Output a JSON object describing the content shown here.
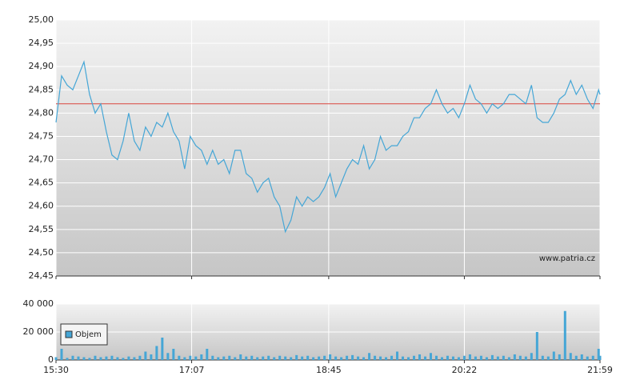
{
  "chart_data": [
    {
      "type": "line",
      "annotation": "www.patria.cz",
      "reference_line": {
        "value": 24.82,
        "color": "#d9463e"
      },
      "x": [
        "15:30",
        "15:34",
        "15:38",
        "15:42",
        "15:46",
        "15:50",
        "15:54",
        "15:58",
        "16:02",
        "16:06",
        "16:10",
        "16:14",
        "16:18",
        "16:22",
        "16:26",
        "16:30",
        "16:34",
        "16:38",
        "16:42",
        "16:46",
        "16:50",
        "16:54",
        "16:58",
        "17:02",
        "17:06",
        "17:10",
        "17:14",
        "17:18",
        "17:22",
        "17:26",
        "17:30",
        "17:34",
        "17:38",
        "17:42",
        "17:46",
        "17:50",
        "17:54",
        "17:58",
        "18:02",
        "18:06",
        "18:10",
        "18:14",
        "18:18",
        "18:22",
        "18:26",
        "18:30",
        "18:34",
        "18:38",
        "18:42",
        "18:46",
        "18:50",
        "18:54",
        "18:58",
        "19:02",
        "19:06",
        "19:10",
        "19:14",
        "19:18",
        "19:22",
        "19:26",
        "19:30",
        "19:34",
        "19:38",
        "19:42",
        "19:46",
        "19:50",
        "19:54",
        "19:58",
        "20:02",
        "20:06",
        "20:10",
        "20:14",
        "20:18",
        "20:22",
        "20:26",
        "20:30",
        "20:34",
        "20:38",
        "20:42",
        "20:46",
        "20:50",
        "20:54",
        "20:58",
        "21:02",
        "21:06",
        "21:10",
        "21:14",
        "21:18",
        "21:22",
        "21:26",
        "21:30",
        "21:34",
        "21:38",
        "21:42",
        "21:46",
        "21:50",
        "21:54",
        "21:58",
        "21:59"
      ],
      "series": [
        {
          "color": "#45a6d6",
          "values": [
            24.78,
            24.88,
            24.86,
            24.85,
            24.88,
            24.91,
            24.84,
            24.8,
            24.82,
            24.76,
            24.71,
            24.7,
            24.74,
            24.8,
            24.74,
            24.72,
            24.77,
            24.75,
            24.78,
            24.77,
            24.8,
            24.76,
            24.74,
            24.68,
            24.75,
            24.73,
            24.72,
            24.69,
            24.72,
            24.69,
            24.7,
            24.67,
            24.72,
            24.72,
            24.67,
            24.66,
            24.63,
            24.65,
            24.66,
            24.62,
            24.6,
            24.545,
            24.57,
            24.62,
            24.6,
            24.62,
            24.61,
            24.62,
            24.64,
            24.67,
            24.62,
            24.65,
            24.68,
            24.7,
            24.69,
            24.73,
            24.68,
            24.7,
            24.75,
            24.72,
            24.73,
            24.73,
            24.75,
            24.76,
            24.79,
            24.79,
            24.81,
            24.82,
            24.85,
            24.82,
            24.8,
            24.81,
            24.79,
            24.82,
            24.86,
            24.83,
            24.82,
            24.8,
            24.82,
            24.81,
            24.82,
            24.84,
            24.84,
            24.83,
            24.82,
            24.86,
            24.79,
            24.78,
            24.78,
            24.8,
            24.83,
            24.84,
            24.87,
            24.84,
            24.86,
            24.83,
            24.81,
            24.85,
            24.84
          ]
        }
      ],
      "xlim": [
        "15:30",
        "21:59"
      ],
      "ylim": [
        24.45,
        25.0
      ],
      "yticks": [
        {
          "value": 24.45,
          "label": "24,45"
        },
        {
          "value": 24.5,
          "label": "24,50"
        },
        {
          "value": 24.55,
          "label": "24,55"
        },
        {
          "value": 24.6,
          "label": "24,60"
        },
        {
          "value": 24.65,
          "label": "24,65"
        },
        {
          "value": 24.7,
          "label": "24,70"
        },
        {
          "value": 24.75,
          "label": "24,75"
        },
        {
          "value": 24.8,
          "label": "24,80"
        },
        {
          "value": 24.85,
          "label": "24,85"
        },
        {
          "value": 24.9,
          "label": "24,90"
        },
        {
          "value": 24.95,
          "label": "24,95"
        },
        {
          "value": 25.0,
          "label": "25,00"
        }
      ],
      "xticks": [
        "15:30",
        "17:07",
        "18:45",
        "20:22",
        "21:59"
      ],
      "grid": true
    },
    {
      "type": "bar",
      "x": [
        "15:30",
        "15:34",
        "15:38",
        "15:42",
        "15:46",
        "15:50",
        "15:54",
        "15:58",
        "16:02",
        "16:06",
        "16:10",
        "16:14",
        "16:18",
        "16:22",
        "16:26",
        "16:30",
        "16:34",
        "16:38",
        "16:42",
        "16:46",
        "16:50",
        "16:54",
        "16:58",
        "17:02",
        "17:06",
        "17:10",
        "17:14",
        "17:18",
        "17:22",
        "17:26",
        "17:30",
        "17:34",
        "17:38",
        "17:42",
        "17:46",
        "17:50",
        "17:54",
        "17:58",
        "18:02",
        "18:06",
        "18:10",
        "18:14",
        "18:18",
        "18:22",
        "18:26",
        "18:30",
        "18:34",
        "18:38",
        "18:42",
        "18:46",
        "18:50",
        "18:54",
        "18:58",
        "19:02",
        "19:06",
        "19:10",
        "19:14",
        "19:18",
        "19:22",
        "19:26",
        "19:30",
        "19:34",
        "19:38",
        "19:42",
        "19:46",
        "19:50",
        "19:54",
        "19:58",
        "20:02",
        "20:06",
        "20:10",
        "20:14",
        "20:18",
        "20:22",
        "20:26",
        "20:30",
        "20:34",
        "20:38",
        "20:42",
        "20:46",
        "20:50",
        "20:54",
        "20:58",
        "21:02",
        "21:06",
        "21:10",
        "21:14",
        "21:18",
        "21:22",
        "21:26",
        "21:30",
        "21:34",
        "21:38",
        "21:42",
        "21:46",
        "21:50",
        "21:54",
        "21:58",
        "21:59"
      ],
      "series": [
        {
          "name": "Objem",
          "color": "#45a6d6",
          "values": [
            2000,
            8000,
            1500,
            3000,
            2500,
            2000,
            1500,
            3000,
            2000,
            2500,
            3000,
            2000,
            1500,
            2500,
            2000,
            3000,
            6000,
            4000,
            10000,
            16000,
            5000,
            8000,
            3000,
            2000,
            3000,
            2500,
            4000,
            8000,
            3000,
            2000,
            2500,
            3000,
            2000,
            4000,
            2500,
            3000,
            2000,
            2500,
            3000,
            2000,
            3000,
            2500,
            2000,
            3500,
            2500,
            3000,
            2000,
            2500,
            3000,
            4000,
            2500,
            2000,
            3000,
            3500,
            2500,
            2000,
            5000,
            3000,
            2500,
            2000,
            3000,
            6000,
            2500,
            2000,
            3000,
            4000,
            2500,
            5000,
            3000,
            2000,
            3000,
            2500,
            2000,
            3000,
            4000,
            2500,
            3000,
            2000,
            3500,
            2500,
            3000,
            2000,
            4000,
            3000,
            2500,
            5000,
            20000,
            3000,
            2500,
            6000,
            4000,
            35000,
            5000,
            3000,
            4000,
            2500,
            3000,
            8000,
            3000
          ]
        }
      ],
      "xlim": [
        "15:30",
        "21:59"
      ],
      "ylim": [
        0,
        40000
      ],
      "yticks": [
        0,
        {
          "value": 20000,
          "label": "20 000"
        },
        {
          "value": 40000,
          "label": "40 000"
        }
      ],
      "xticks": [
        {
          "value": "15:30",
          "label": "15:30"
        },
        {
          "value": "17:07",
          "label": "17:07"
        },
        {
          "value": "18:45",
          "label": "18:45"
        },
        {
          "value": "20:22",
          "label": "20:22"
        },
        {
          "value": "21:59",
          "label": "21:59"
        }
      ],
      "grid": true,
      "legend": "upper left"
    }
  ]
}
